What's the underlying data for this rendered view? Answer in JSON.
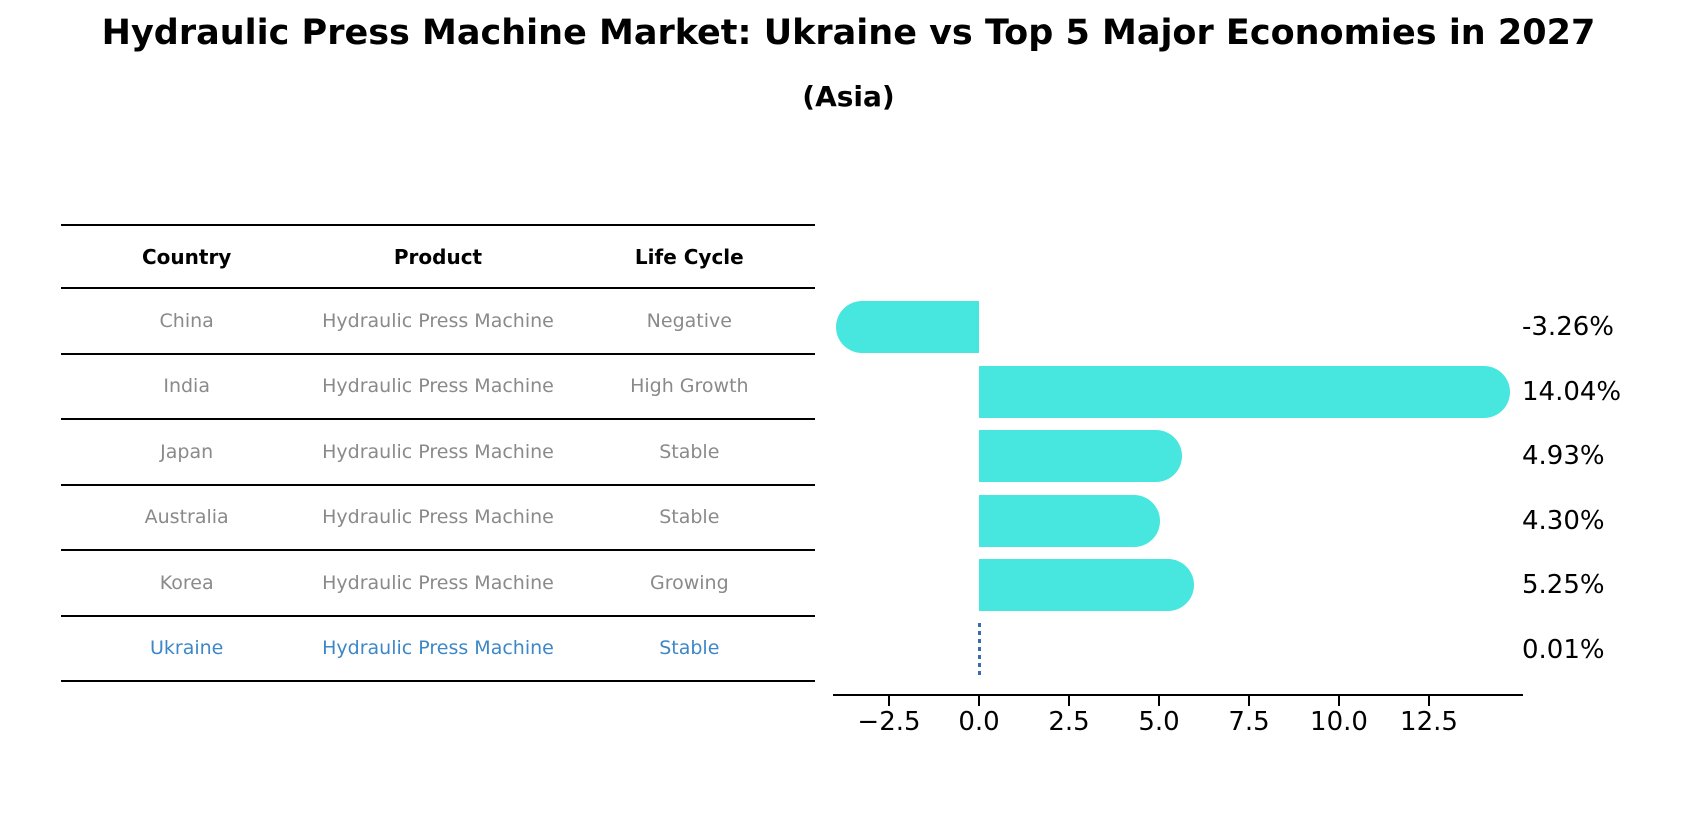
{
  "header": {
    "title": "Hydraulic Press Machine Market: Ukraine vs Top 5 Major Economies in 2027",
    "subtitle": "(Asia)"
  },
  "table": {
    "columns": [
      "Country",
      "Product",
      "Life Cycle"
    ],
    "rows": [
      {
        "country": "China",
        "product": "Hydraulic Press Machine",
        "life_cycle": "Negative",
        "highlighted": false
      },
      {
        "country": "India",
        "product": "Hydraulic Press Machine",
        "life_cycle": "High Growth",
        "highlighted": false
      },
      {
        "country": "Japan",
        "product": "Hydraulic Press Machine",
        "life_cycle": "Stable",
        "highlighted": false
      },
      {
        "country": "Australia",
        "product": "Hydraulic Press Machine",
        "life_cycle": "Stable",
        "highlighted": false
      },
      {
        "country": "Korea",
        "product": "Hydraulic Press Machine",
        "life_cycle": "Growing",
        "highlighted": false
      },
      {
        "country": "Ukraine",
        "product": "Hydraulic Press Machine",
        "life_cycle": "Stable",
        "highlighted": true
      }
    ]
  },
  "chart_data": {
    "type": "bar",
    "orientation": "horizontal",
    "categories": [
      "China",
      "India",
      "Japan",
      "Australia",
      "Korea",
      "Ukraine"
    ],
    "values": [
      -3.26,
      14.04,
      4.93,
      4.3,
      5.25,
      0.01
    ],
    "value_labels": [
      "-3.26%",
      "14.04%",
      "4.93%",
      "4.30%",
      "5.25%",
      "0.01%"
    ],
    "x_ticks": [
      -2.5,
      0.0,
      2.5,
      5.0,
      7.5,
      10.0,
      12.5
    ],
    "x_tick_labels": [
      "−2.5",
      "0.0",
      "2.5",
      "5.0",
      "7.5",
      "10.0",
      "12.5"
    ],
    "xlim": [
      -4.06,
      15.1
    ],
    "grid": false,
    "legend": false,
    "highlight_index": 5,
    "highlight_style": "dashed-zero-line"
  },
  "colors": {
    "bar": "#47E6DE",
    "dashed_line": "#3A6DAE",
    "highlight_text": "#3D87C8",
    "table_text": "#8a8a8a",
    "table_header": "#000000",
    "axis": "#000000"
  }
}
